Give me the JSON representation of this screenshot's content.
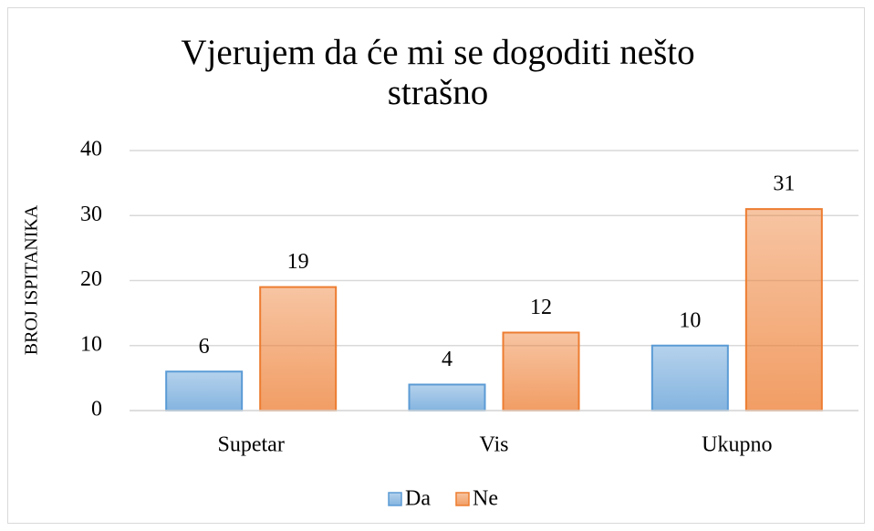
{
  "chart_data": {
    "type": "bar",
    "title": "Vjerujem da će mi se dogoditi nešto strašno",
    "y_label": "BROJ ISPITANIKA",
    "categories": [
      "Supetar",
      "Vis",
      "Ukupno"
    ],
    "series": [
      {
        "name": "Da",
        "color": "#5b9bd5",
        "values": [
          6,
          4,
          10
        ]
      },
      {
        "name": "Ne",
        "color": "#ed7d31",
        "values": [
          19,
          12,
          31
        ]
      }
    ],
    "ylim": [
      0,
      40
    ],
    "yticks": [
      0,
      10,
      20,
      30,
      40
    ],
    "grid": true,
    "legend": "bottom"
  }
}
